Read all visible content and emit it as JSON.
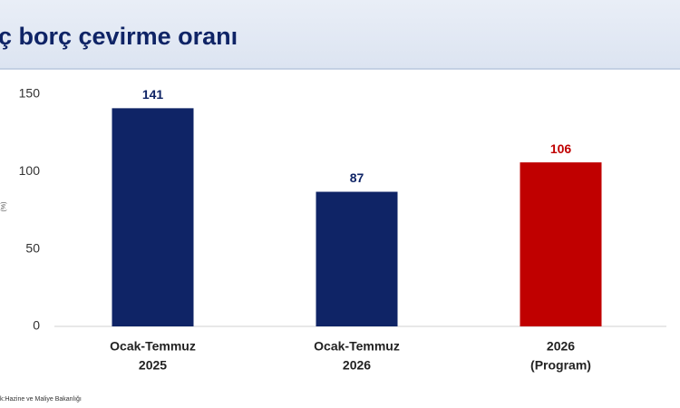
{
  "chart_data": {
    "type": "bar",
    "title": "ç borç çevirme oranı",
    "y_label": "(%)",
    "categories": [
      [
        "Ocak-Temmuz",
        "2025"
      ],
      [
        "Ocak-Temmuz",
        "2026"
      ],
      [
        "2026",
        "(Program)"
      ]
    ],
    "values": [
      141,
      87,
      106
    ],
    "colors": [
      "#0f2466",
      "#0f2466",
      "#c00000"
    ],
    "ylim": [
      0,
      150
    ],
    "yticks": [
      0,
      50,
      100,
      150
    ],
    "grid": false,
    "source": "k:Hazine ve Maliye Bakanlığı"
  }
}
